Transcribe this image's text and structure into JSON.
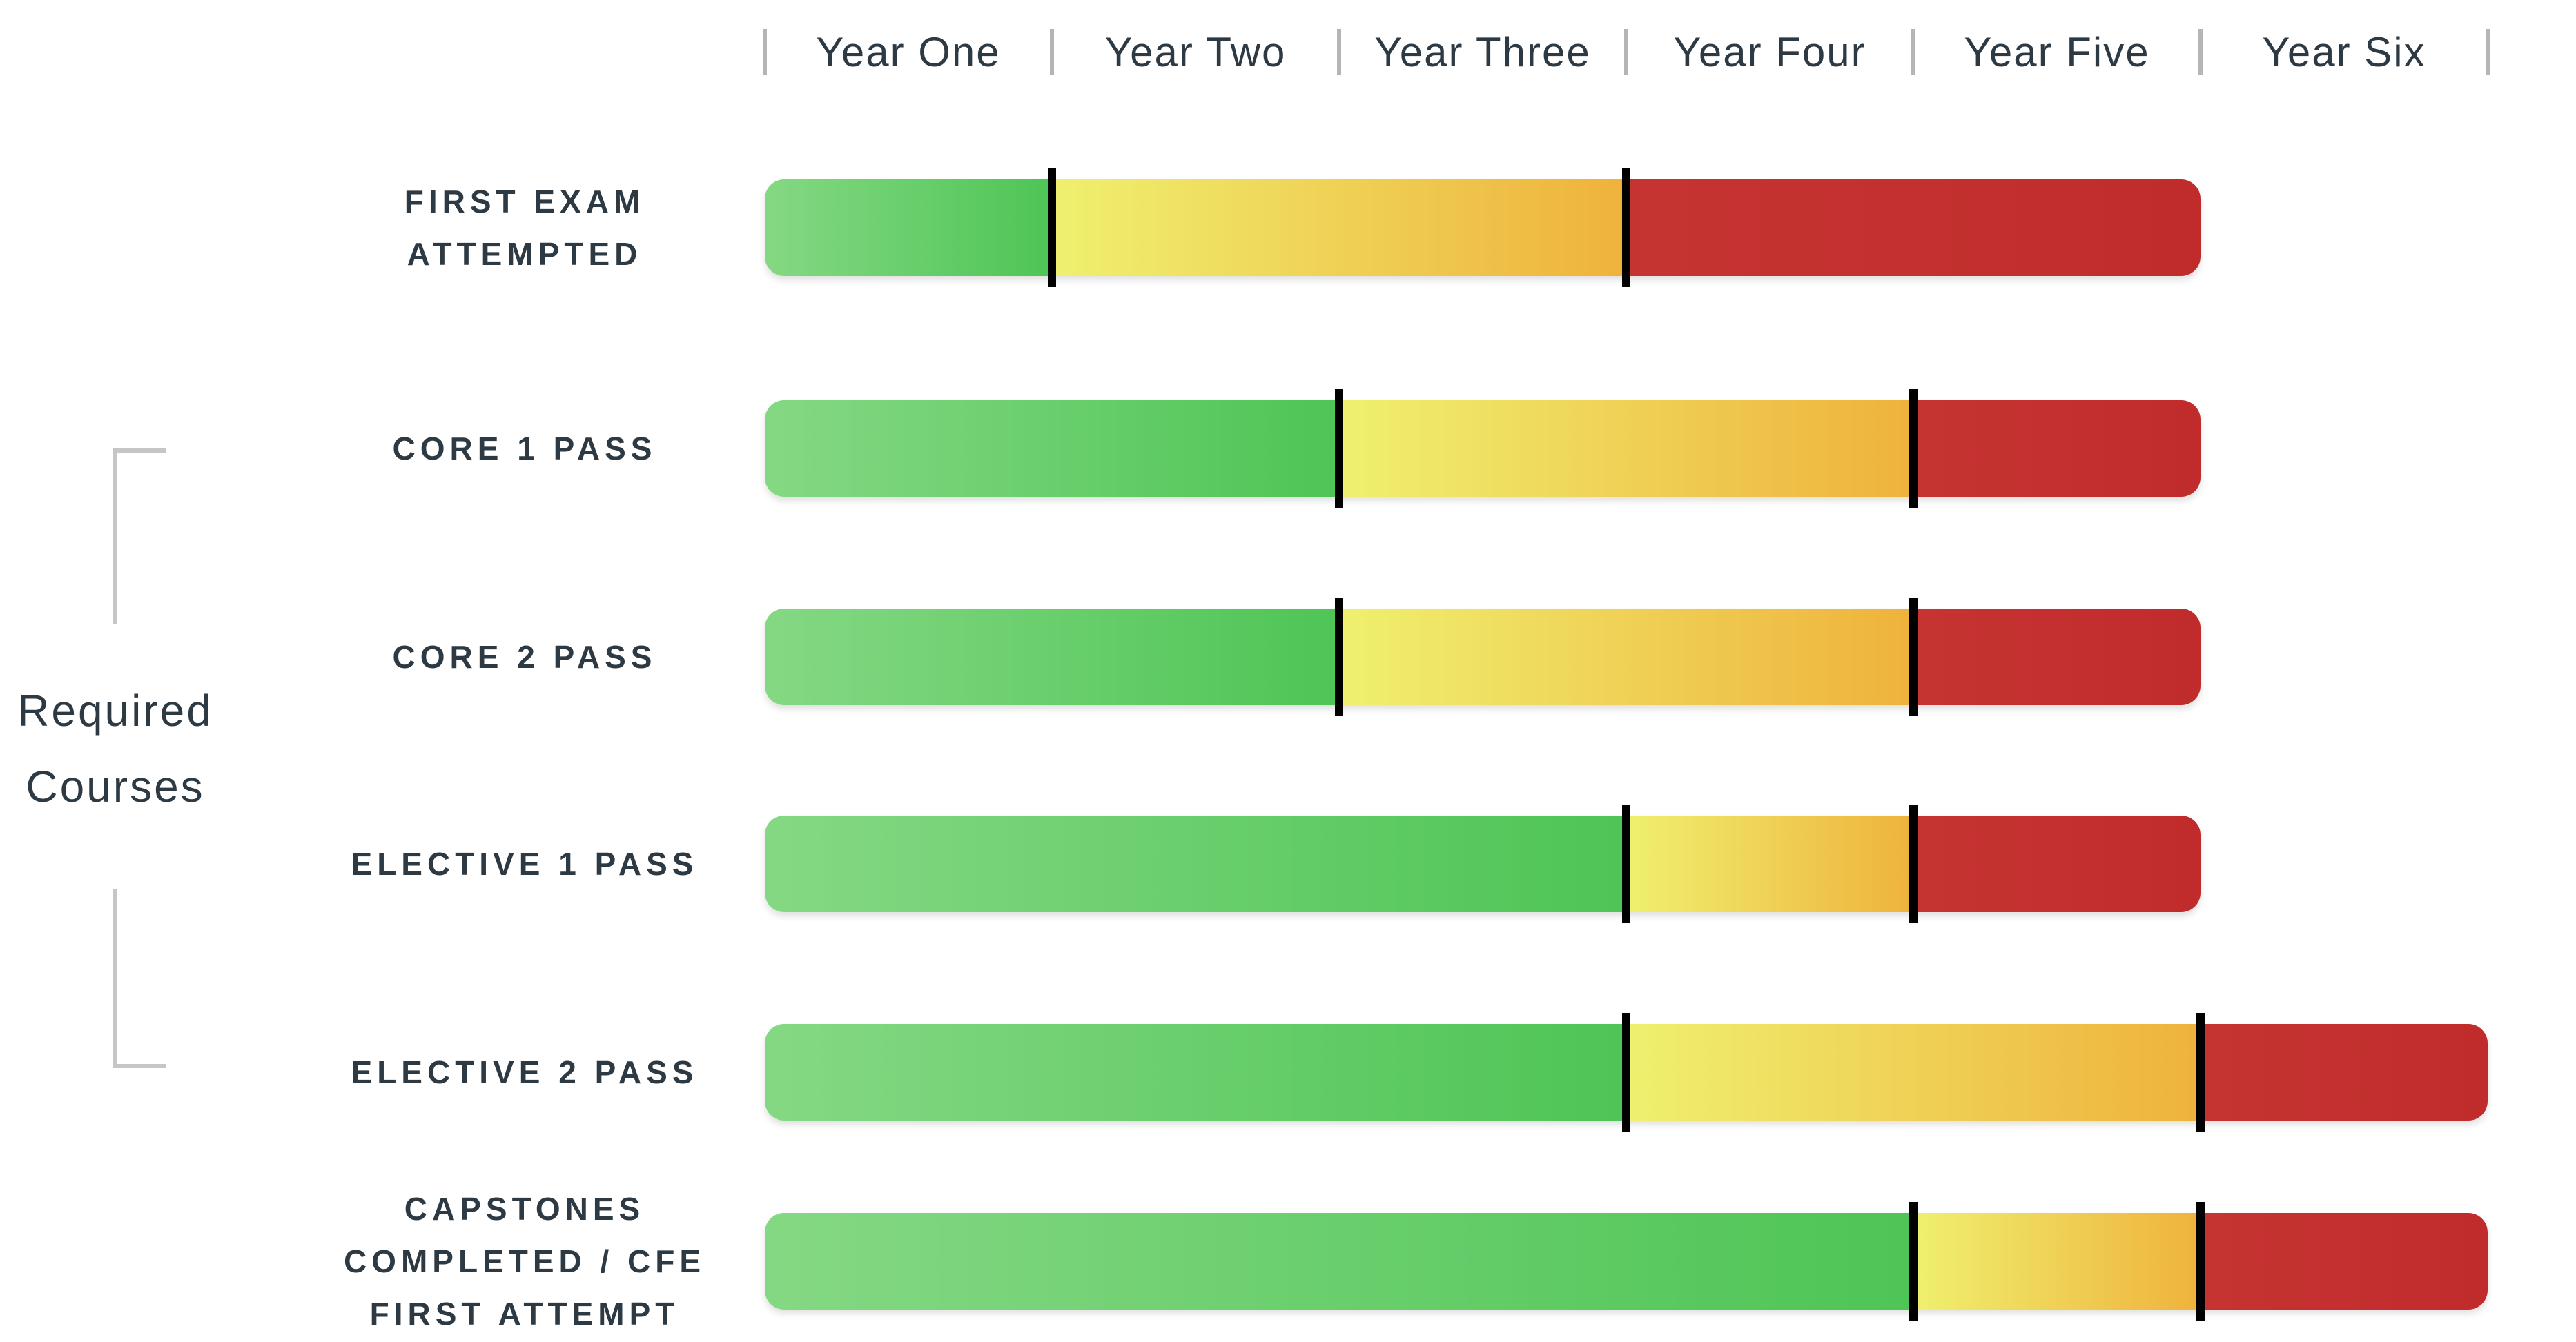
{
  "chart_data": {
    "type": "bar",
    "subtype": "horizontal-timeline-gantt",
    "title": "",
    "x_axis": {
      "unit": "years",
      "labels": [
        "Year One",
        "Year Two",
        "Year Three",
        "Year Four",
        "Year Five",
        "Year Six"
      ],
      "range_years": [
        0,
        6
      ],
      "tick_dividers": true,
      "legend_position": "none"
    },
    "group_bracket": {
      "label": "Required Courses",
      "label_lines": [
        "Required",
        "Courses"
      ],
      "rows_spanned": [
        "CORE 1 PASS",
        "CORE 2 PASS",
        "ELECTIVE 1 PASS",
        "ELECTIVE 2 PASS"
      ]
    },
    "rows": [
      {
        "label": "FIRST EXAM ATTEMPTED",
        "label_lines": [
          "FIRST EXAM",
          "ATTEMPTED"
        ],
        "segments": [
          {
            "color": "green",
            "from_year": 0,
            "to_year": 1
          },
          {
            "color": "yellow",
            "from_year": 1,
            "to_year": 3
          },
          {
            "color": "red",
            "from_year": 3,
            "to_year": 5
          }
        ],
        "markers_at_years": [
          1,
          3
        ]
      },
      {
        "label": "CORE 1 PASS",
        "label_lines": [
          "CORE 1 PASS"
        ],
        "segments": [
          {
            "color": "green",
            "from_year": 0,
            "to_year": 2
          },
          {
            "color": "yellow",
            "from_year": 2,
            "to_year": 4
          },
          {
            "color": "red",
            "from_year": 4,
            "to_year": 5
          }
        ],
        "markers_at_years": [
          2,
          4
        ]
      },
      {
        "label": "CORE 2 PASS",
        "label_lines": [
          "CORE 2 PASS"
        ],
        "segments": [
          {
            "color": "green",
            "from_year": 0,
            "to_year": 2
          },
          {
            "color": "yellow",
            "from_year": 2,
            "to_year": 4
          },
          {
            "color": "red",
            "from_year": 4,
            "to_year": 5
          }
        ],
        "markers_at_years": [
          2,
          4
        ]
      },
      {
        "label": "ELECTIVE 1 PASS",
        "label_lines": [
          "ELECTIVE 1 PASS"
        ],
        "segments": [
          {
            "color": "green",
            "from_year": 0,
            "to_year": 3
          },
          {
            "color": "yellow",
            "from_year": 3,
            "to_year": 4
          },
          {
            "color": "red",
            "from_year": 4,
            "to_year": 5
          }
        ],
        "markers_at_years": [
          3,
          4
        ]
      },
      {
        "label": "ELECTIVE 2 PASS",
        "label_lines": [
          "ELECTIVE 2 PASS"
        ],
        "segments": [
          {
            "color": "green",
            "from_year": 0,
            "to_year": 3
          },
          {
            "color": "yellow",
            "from_year": 3,
            "to_year": 5
          },
          {
            "color": "red",
            "from_year": 5,
            "to_year": 6
          }
        ],
        "markers_at_years": [
          3,
          5
        ]
      },
      {
        "label": "CAPSTONES COMPLETED / CFE FIRST ATTEMPT",
        "label_lines": [
          "CAPSTONES",
          "COMPLETED / CFE",
          "FIRST ATTEMPT"
        ],
        "segments": [
          {
            "color": "green",
            "from_year": 0,
            "to_year": 4
          },
          {
            "color": "yellow",
            "from_year": 4,
            "to_year": 5
          },
          {
            "color": "red",
            "from_year": 5,
            "to_year": 6
          }
        ],
        "markers_at_years": [
          4,
          5
        ]
      }
    ],
    "colors": {
      "green_start": "#85d883",
      "green_end": "#4ec556",
      "yellow_start": "#eff06f",
      "yellow_end": "#efb23c",
      "red_start": "#c63432",
      "red_end": "#c02c2c",
      "marker": "#010101",
      "axis_divider": "#b5b5b5",
      "bracket": "#c6c6c6",
      "text": "#2d3a43"
    }
  }
}
